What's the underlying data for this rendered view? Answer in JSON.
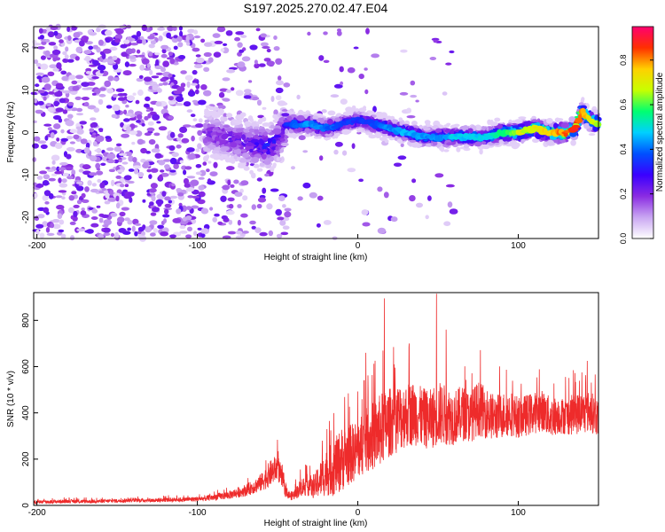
{
  "title": "S197.2025.270.02.47.E04",
  "colors": {
    "snr_line": "#ee2b2b",
    "colormap": [
      "#ffffff",
      "#c9a6f2",
      "#8a2be2",
      "#3a00ff",
      "#0050ff",
      "#00d0ff",
      "#00ff70",
      "#c8ff00",
      "#ffd000",
      "#ff3000",
      "#ff0070"
    ]
  },
  "chart_data": [
    {
      "type": "heatmap",
      "xlabel": "Height of straight line (km)",
      "ylabel": "Frequency (Hz)",
      "xlim": [
        -202,
        150
      ],
      "ylim": [
        -25,
        25
      ],
      "x_ticks": [
        {
          "value": -200,
          "label": "-200"
        },
        {
          "value": -100,
          "label": "-100"
        },
        {
          "value": 0,
          "label": "0"
        },
        {
          "value": 100,
          "label": "100"
        }
      ],
      "y_ticks": [
        {
          "value": 20,
          "label": "20"
        },
        {
          "value": 10,
          "label": "10"
        },
        {
          "value": 0,
          "label": "0"
        },
        {
          "value": -10,
          "label": "-10"
        },
        {
          "value": -20,
          "label": "-20"
        }
      ],
      "colorbar": {
        "label": "Normalized spectral amplitude",
        "range": [
          0,
          0.95
        ],
        "ticks": [
          {
            "value": 0.0,
            "label": "0.0"
          },
          {
            "value": 0.2,
            "label": "0.2"
          },
          {
            "value": 0.4,
            "label": "0.4"
          },
          {
            "value": 0.6,
            "label": "0.6"
          },
          {
            "value": 0.8,
            "label": "0.8"
          }
        ]
      },
      "noise_region": {
        "x_range": [
          -202,
          -95
        ],
        "amplitude": 0.25
      },
      "ridge": {
        "x": [
          -95,
          -85,
          -75,
          -65,
          -55,
          -50,
          -45,
          -40,
          -30,
          -20,
          -10,
          0,
          10,
          20,
          30,
          40,
          50,
          60,
          70,
          80,
          90,
          100,
          110,
          120,
          130,
          135,
          140,
          145,
          150
        ],
        "frequency": [
          0,
          -1,
          -2,
          -3,
          -3,
          -2,
          2,
          2,
          2,
          1,
          2,
          3,
          2,
          1,
          0,
          -1,
          -1,
          -1,
          -1,
          -1,
          0,
          0,
          1,
          0,
          0,
          1,
          5,
          3,
          2
        ],
        "amplitude": [
          0.22,
          0.25,
          0.27,
          0.3,
          0.35,
          0.3,
          0.35,
          0.4,
          0.45,
          0.42,
          0.38,
          0.35,
          0.38,
          0.45,
          0.48,
          0.45,
          0.45,
          0.5,
          0.5,
          0.5,
          0.6,
          0.7,
          0.75,
          0.8,
          0.85,
          0.9,
          0.85,
          0.75,
          0.7
        ]
      }
    },
    {
      "type": "line",
      "xlabel": "Height of straight line (km)",
      "ylabel": "SNR (10 * v/v)",
      "xlim": [
        -202,
        150
      ],
      "ylim": [
        0,
        920
      ],
      "x_ticks": [
        {
          "value": -200,
          "label": "-200"
        },
        {
          "value": -100,
          "label": "-100"
        },
        {
          "value": 0,
          "label": "0"
        },
        {
          "value": 100,
          "label": "100"
        }
      ],
      "y_ticks": [
        {
          "value": 0,
          "label": "0"
        },
        {
          "value": 200,
          "label": "200"
        },
        {
          "value": 400,
          "label": "400"
        },
        {
          "value": 600,
          "label": "600"
        },
        {
          "value": 800,
          "label": "800"
        }
      ],
      "series": [
        {
          "color": "#ee2b2b",
          "x": [
            -202,
            -190,
            -180,
            -170,
            -160,
            -150,
            -140,
            -130,
            -120,
            -110,
            -100,
            -95,
            -90,
            -85,
            -80,
            -75,
            -70,
            -65,
            -60,
            -55,
            -50,
            -47,
            -45,
            -42,
            -40,
            -35,
            -30,
            -28,
            -25,
            -20,
            -15,
            -10,
            -5,
            0,
            5,
            10,
            15,
            20,
            25,
            30,
            35,
            40,
            45,
            50,
            55,
            60,
            65,
            70,
            75,
            80,
            85,
            90,
            95,
            100,
            105,
            110,
            115,
            120,
            125,
            130,
            135,
            140,
            145,
            150
          ],
          "y": [
            15,
            16,
            18,
            17,
            18,
            20,
            22,
            22,
            24,
            25,
            28,
            30,
            35,
            40,
            45,
            55,
            65,
            80,
            100,
            135,
            165,
            110,
            60,
            40,
            45,
            80,
            90,
            70,
            100,
            140,
            160,
            200,
            220,
            240,
            280,
            300,
            330,
            360,
            380,
            390,
            400,
            380,
            370,
            400,
            390,
            380,
            400,
            380,
            420,
            400,
            380,
            390,
            400,
            380,
            390,
            400,
            410,
            380,
            390,
            385,
            395,
            400,
            405,
            380
          ],
          "spread": [
            8,
            8,
            8,
            8,
            8,
            8,
            8,
            9,
            9,
            10,
            10,
            12,
            14,
            16,
            18,
            22,
            26,
            30,
            40,
            55,
            60,
            45,
            25,
            18,
            22,
            40,
            50,
            40,
            70,
            100,
            120,
            140,
            130,
            130,
            140,
            150,
            160,
            150,
            150,
            140,
            140,
            130,
            130,
            140,
            130,
            120,
            120,
            110,
            120,
            110,
            100,
            100,
            100,
            90,
            90,
            90,
            90,
            90,
            80,
            80,
            90,
            90,
            90,
            80
          ],
          "peaks": [
            {
              "x": 16.5,
              "y": 895
            },
            {
              "x": 49,
              "y": 915
            },
            {
              "x": 55,
              "y": 760
            },
            {
              "x": 32,
              "y": 700
            },
            {
              "x": 5,
              "y": 660
            },
            {
              "x": 143,
              "y": 625
            }
          ]
        }
      ]
    }
  ]
}
